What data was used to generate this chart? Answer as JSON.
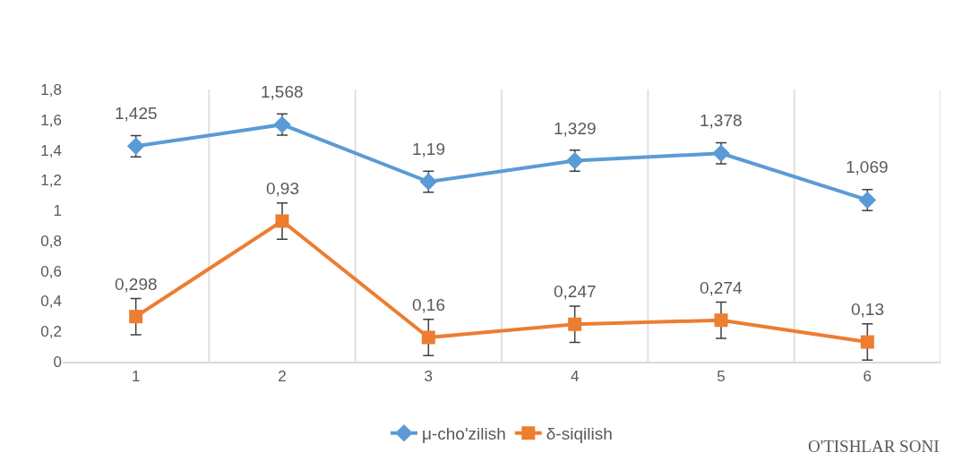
{
  "chart_data": {
    "type": "line",
    "xlabel": "O'TISHLAR SONI",
    "categories": [
      "1",
      "2",
      "3",
      "4",
      "5",
      "6"
    ],
    "series": [
      {
        "name": "μ-cho'zilish",
        "color": "#5b9bd5",
        "marker": "diamond",
        "values": [
          1.425,
          1.568,
          1.19,
          1.329,
          1.378,
          1.069
        ],
        "value_labels": [
          "1,425",
          "1,568",
          "1,19",
          "1,329",
          "1,378",
          "1,069"
        ],
        "errors": [
          0.07,
          0.07,
          0.07,
          0.07,
          0.07,
          0.07
        ]
      },
      {
        "name": "δ-siqilish",
        "color": "#ed7d31",
        "marker": "square",
        "values": [
          0.298,
          0.93,
          0.16,
          0.247,
          0.274,
          0.13
        ],
        "value_labels": [
          "0,298",
          "0,93",
          "0,16",
          "0,247",
          "0,274",
          "0,13"
        ],
        "errors": [
          0.12,
          0.12,
          0.12,
          0.12,
          0.12,
          0.12
        ]
      }
    ],
    "ylim": [
      0,
      1.8
    ],
    "yticks": [
      0,
      {
        "value": 0.2,
        "label": "0,2"
      },
      {
        "value": 0.4,
        "label": "0,4"
      },
      {
        "value": 0.6,
        "label": "0,6"
      },
      {
        "value": 0.8,
        "label": "0,8"
      },
      1,
      {
        "value": 1.2,
        "label": "1,2"
      },
      {
        "value": 1.4,
        "label": "1,4"
      },
      {
        "value": 1.6,
        "label": "1,6"
      },
      {
        "value": 1.8,
        "label": "1,8"
      }
    ],
    "grid": "x",
    "legend": "bottom",
    "line_style": "solid"
  }
}
